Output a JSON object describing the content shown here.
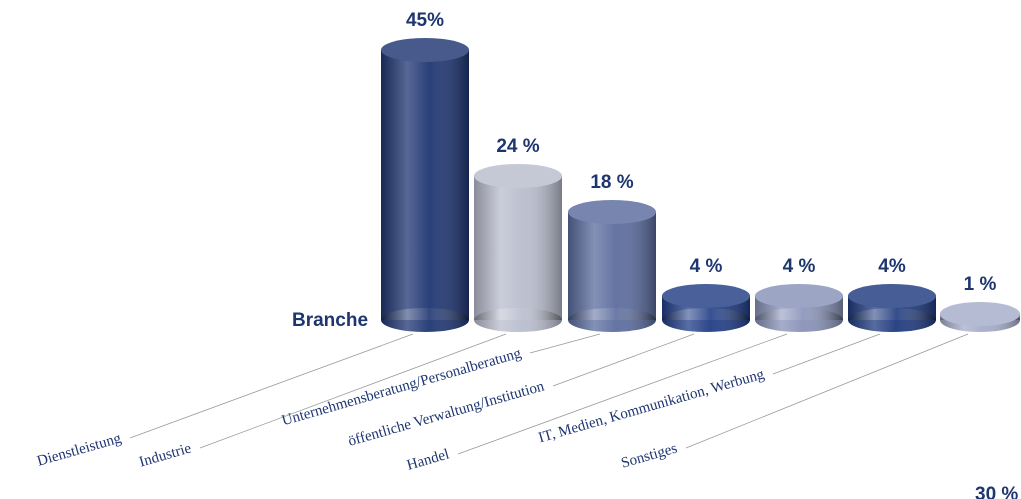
{
  "chart_data": {
    "type": "bar3d",
    "axis_label": "Branche",
    "categories": [
      "Dienstleistung",
      "Industrie",
      "Unternehmensberatung/Personalberatung",
      "öffentliche Verwaltung/Institution",
      "Handel",
      "IT, Medien, Kommunikation, Werbung",
      "Sonstiges"
    ],
    "values": [
      45,
      24,
      18,
      4,
      4,
      4,
      1
    ],
    "value_labels": [
      "45%",
      "24 %",
      "18 %",
      "4 %",
      "4 %",
      "4%",
      "1 %"
    ],
    "colors": [
      "#1f3672",
      "#b9bdcd",
      "#5b6c9e",
      "#213d86",
      "#8892b8",
      "#1f3a7e",
      "#a5adc9"
    ],
    "annotation": "30 %"
  }
}
